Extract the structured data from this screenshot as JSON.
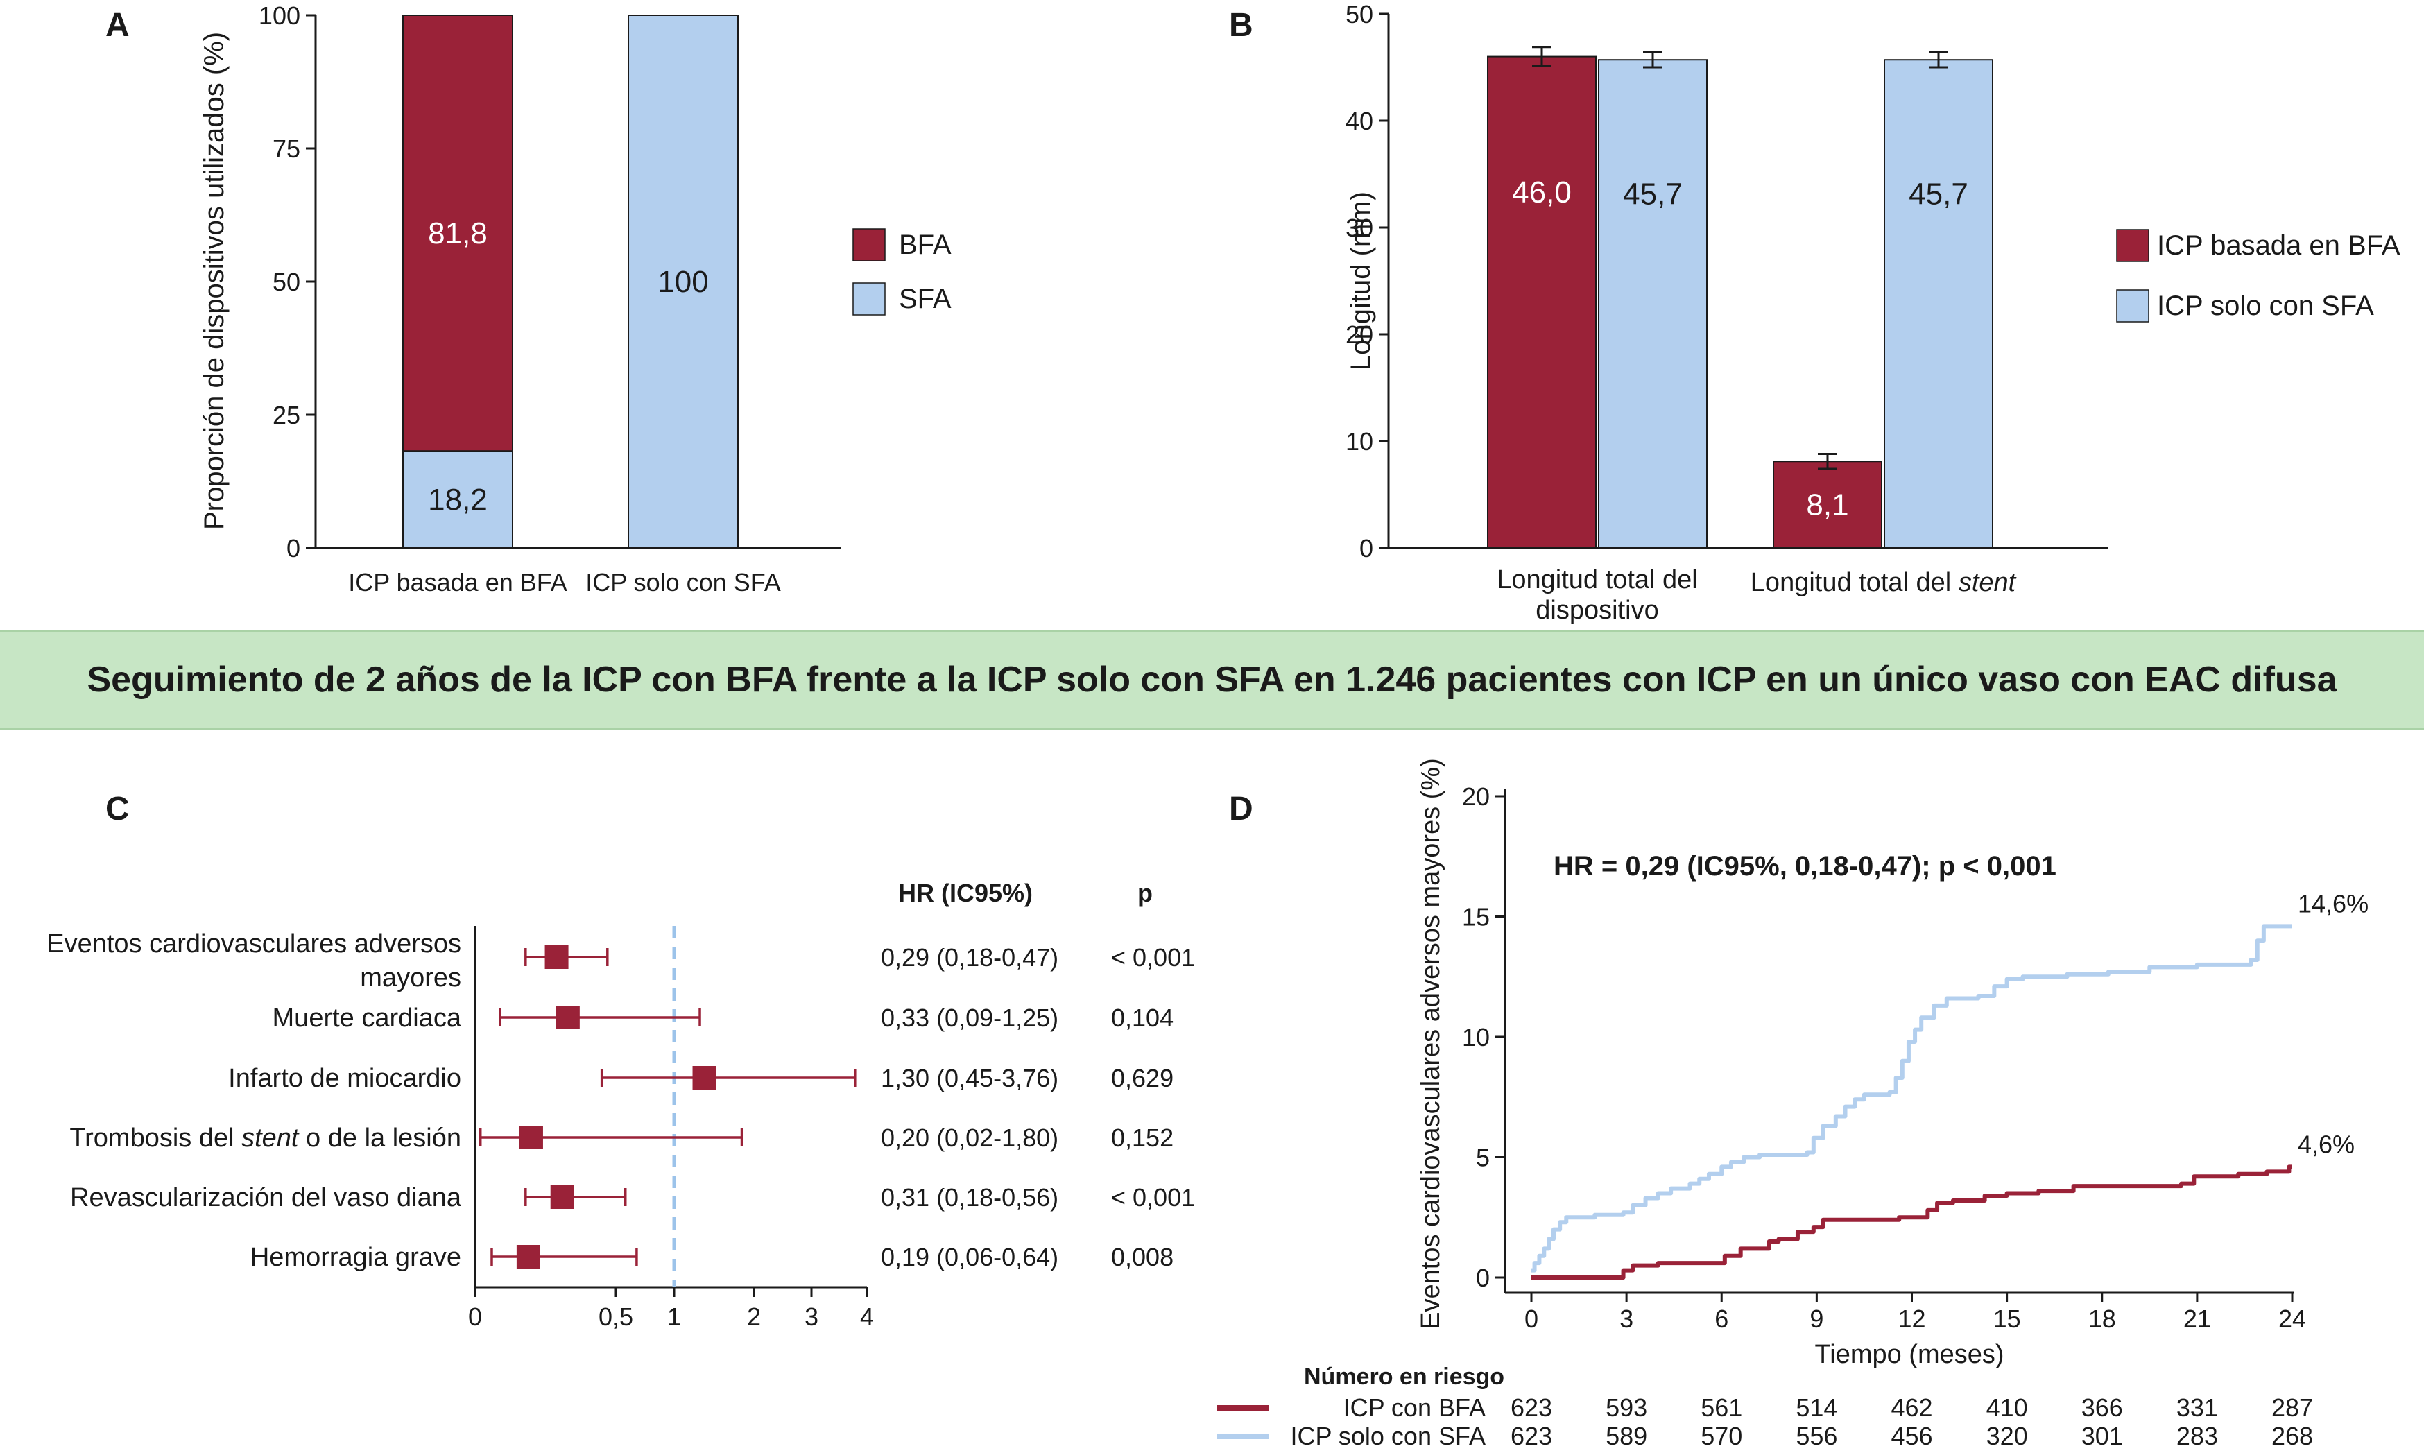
{
  "colors": {
    "bfa": "#9a2238",
    "sfa": "#b3cfee",
    "axis": "#1a1a1a",
    "banner_bg": "#c7e6c5",
    "ref_line": "#9cc3ea"
  },
  "banner": {
    "title": "Seguimiento de 2 años de la ICP con BFA frente a la ICP solo con SFA en 1.246 pacientes con ICP en un único vaso con EAC difusa"
  },
  "chart_data": [
    {
      "panel": "A",
      "type": "bar",
      "stacked": true,
      "ylabel": "Proporción de dispositivos utilizados (%)",
      "ylim": [
        0,
        100
      ],
      "yticks": [
        "0",
        "25",
        "50",
        "75",
        "100"
      ],
      "categories": [
        "ICP basada en BFA",
        "ICP solo con SFA"
      ],
      "series": [
        {
          "name": "SFA",
          "values": [
            18.2,
            100
          ],
          "labels": [
            "18,2",
            "100"
          ]
        },
        {
          "name": "BFA",
          "values": [
            81.8,
            0
          ],
          "labels": [
            "81,8",
            ""
          ]
        }
      ],
      "legend": [
        "BFA",
        "SFA"
      ],
      "legend_position": "right"
    },
    {
      "panel": "B",
      "type": "bar",
      "ylabel": "Longitud (mm)",
      "ylim": [
        0,
        50
      ],
      "yticks": [
        "0",
        "10",
        "20",
        "30",
        "40",
        "50"
      ],
      "categories": [
        "Longitud total del dispositivo",
        "Longitud total del stent"
      ],
      "category_lines": [
        [
          "Longitud total del",
          "dispositivo"
        ],
        [
          "Longitud total del",
          "stent"
        ]
      ],
      "series": [
        {
          "name": "ICP basada en BFA",
          "values": [
            46.0,
            8.1
          ],
          "errors": [
            0.9,
            0.7
          ],
          "labels": [
            "46,0",
            "8,1"
          ]
        },
        {
          "name": "ICP solo con SFA",
          "values": [
            45.7,
            45.7
          ],
          "errors": [
            0.7,
            0.7
          ],
          "labels": [
            "45,7",
            "45,7"
          ]
        }
      ],
      "legend": [
        "ICP basada en BFA",
        "ICP solo con SFA"
      ],
      "legend_position": "right"
    },
    {
      "panel": "C",
      "type": "forest",
      "col_hr": "HR (IC95%)",
      "col_p": "p",
      "xscale": "log",
      "xticks": [
        {
          "v": 0.001,
          "label": "0"
        },
        {
          "v": 0.5,
          "label": "0,5"
        },
        {
          "v": 1,
          "label": "1"
        },
        {
          "v": 2,
          "label": "2"
        },
        {
          "v": 3,
          "label": "3"
        },
        {
          "v": 4,
          "label": "4"
        }
      ],
      "reference": 1,
      "rows": [
        {
          "label_lines": [
            "Eventos cardiovasculares adversos",
            "mayores"
          ],
          "hr": 0.29,
          "lo": 0.18,
          "hi": 0.47,
          "hr_text": "0,29 (0,18-0,47)",
          "p": "< 0,001"
        },
        {
          "label_lines": [
            "Muerte cardiaca"
          ],
          "hr": 0.33,
          "lo": 0.09,
          "hi": 1.25,
          "hr_text": "0,33 (0,09-1,25)",
          "p": "0,104"
        },
        {
          "label_lines": [
            "Infarto de miocardio"
          ],
          "hr": 1.3,
          "lo": 0.45,
          "hi": 3.76,
          "hr_text": "1,30 (0,45-3,76)",
          "p": "0,629"
        },
        {
          "label_lines": [
            "Trombosis del ",
            "stent",
            " o de la lesión"
          ],
          "italic_middle": true,
          "hr": 0.2,
          "lo": 0.02,
          "hi": 1.8,
          "hr_text": "0,20 (0,02-1,80)",
          "p": "0,152"
        },
        {
          "label_lines": [
            "Revascularización del vaso diana"
          ],
          "hr": 0.31,
          "lo": 0.18,
          "hi": 0.56,
          "hr_text": "0,31 (0,18-0,56)",
          "p": "< 0,001"
        },
        {
          "label_lines": [
            "Hemorragia grave"
          ],
          "hr": 0.19,
          "lo": 0.06,
          "hi": 0.64,
          "hr_text": "0,19 (0,06-0,64)",
          "p": "0,008"
        }
      ]
    },
    {
      "panel": "D",
      "type": "line",
      "ylabel": "Eventos cardiovasculares adversos mayores (%)",
      "xlabel": "Tiempo (meses)",
      "xlim": [
        0,
        24
      ],
      "ylim": [
        0,
        20
      ],
      "xticks": [
        "0",
        "3",
        "6",
        "9",
        "12",
        "15",
        "18",
        "21",
        "24"
      ],
      "yticks": [
        "0",
        "5",
        "10",
        "15",
        "20"
      ],
      "annotation": "HR = 0,29 (IC95%, 0,18-0,47); p < 0,001",
      "series": [
        {
          "name": "ICP solo con SFA",
          "end_label": "14,6%",
          "points": [
            [
              0,
              0.3
            ],
            [
              0.1,
              0.6
            ],
            [
              0.25,
              0.9
            ],
            [
              0.4,
              1.2
            ],
            [
              0.55,
              1.6
            ],
            [
              0.7,
              2.0
            ],
            [
              0.9,
              2.3
            ],
            [
              1.1,
              2.5
            ],
            [
              2.0,
              2.6
            ],
            [
              2.9,
              2.7
            ],
            [
              3.2,
              3.0
            ],
            [
              3.6,
              3.3
            ],
            [
              4.0,
              3.5
            ],
            [
              4.4,
              3.7
            ],
            [
              5.0,
              3.9
            ],
            [
              5.3,
              4.1
            ],
            [
              5.6,
              4.3
            ],
            [
              6.0,
              4.6
            ],
            [
              6.3,
              4.8
            ],
            [
              6.7,
              5.0
            ],
            [
              7.2,
              5.1
            ],
            [
              8.7,
              5.2
            ],
            [
              8.9,
              5.8
            ],
            [
              9.2,
              6.3
            ],
            [
              9.6,
              6.7
            ],
            [
              9.9,
              7.1
            ],
            [
              10.2,
              7.4
            ],
            [
              10.5,
              7.6
            ],
            [
              11.3,
              7.7
            ],
            [
              11.5,
              8.3
            ],
            [
              11.7,
              9.0
            ],
            [
              11.9,
              9.8
            ],
            [
              12.1,
              10.3
            ],
            [
              12.3,
              10.8
            ],
            [
              12.7,
              11.3
            ],
            [
              13.1,
              11.6
            ],
            [
              14.1,
              11.7
            ],
            [
              14.6,
              12.1
            ],
            [
              15.0,
              12.4
            ],
            [
              15.5,
              12.5
            ],
            [
              16.9,
              12.6
            ],
            [
              18.2,
              12.7
            ],
            [
              19.5,
              12.9
            ],
            [
              21.0,
              13.0
            ],
            [
              22.7,
              13.2
            ],
            [
              22.9,
              14.0
            ],
            [
              23.1,
              14.6
            ],
            [
              24,
              14.6
            ]
          ]
        },
        {
          "name": "ICP con BFA",
          "end_label": "4,6%",
          "points": [
            [
              0,
              0.0
            ],
            [
              2.5,
              0.0
            ],
            [
              2.9,
              0.3
            ],
            [
              3.2,
              0.5
            ],
            [
              4.0,
              0.6
            ],
            [
              5.8,
              0.6
            ],
            [
              6.1,
              0.9
            ],
            [
              6.6,
              1.2
            ],
            [
              7.5,
              1.5
            ],
            [
              7.8,
              1.6
            ],
            [
              8.4,
              1.9
            ],
            [
              8.9,
              2.1
            ],
            [
              9.2,
              2.4
            ],
            [
              11.2,
              2.4
            ],
            [
              11.6,
              2.5
            ],
            [
              12.5,
              2.8
            ],
            [
              12.8,
              3.1
            ],
            [
              13.3,
              3.2
            ],
            [
              14.3,
              3.4
            ],
            [
              15.0,
              3.5
            ],
            [
              16.0,
              3.6
            ],
            [
              17.1,
              3.8
            ],
            [
              20.5,
              3.9
            ],
            [
              20.9,
              4.2
            ],
            [
              22.3,
              4.3
            ],
            [
              23.2,
              4.4
            ],
            [
              23.9,
              4.6
            ],
            [
              24,
              4.6
            ]
          ]
        }
      ],
      "risk_table": {
        "title": "Número en riesgo",
        "rows": [
          {
            "name": "ICP con BFA",
            "values": [
              "623",
              "593",
              "561",
              "514",
              "462",
              "410",
              "366",
              "331",
              "287"
            ]
          },
          {
            "name": "ICP solo con SFA",
            "values": [
              "623",
              "589",
              "570",
              "556",
              "456",
              "320",
              "301",
              "283",
              "268"
            ]
          }
        ]
      }
    }
  ]
}
